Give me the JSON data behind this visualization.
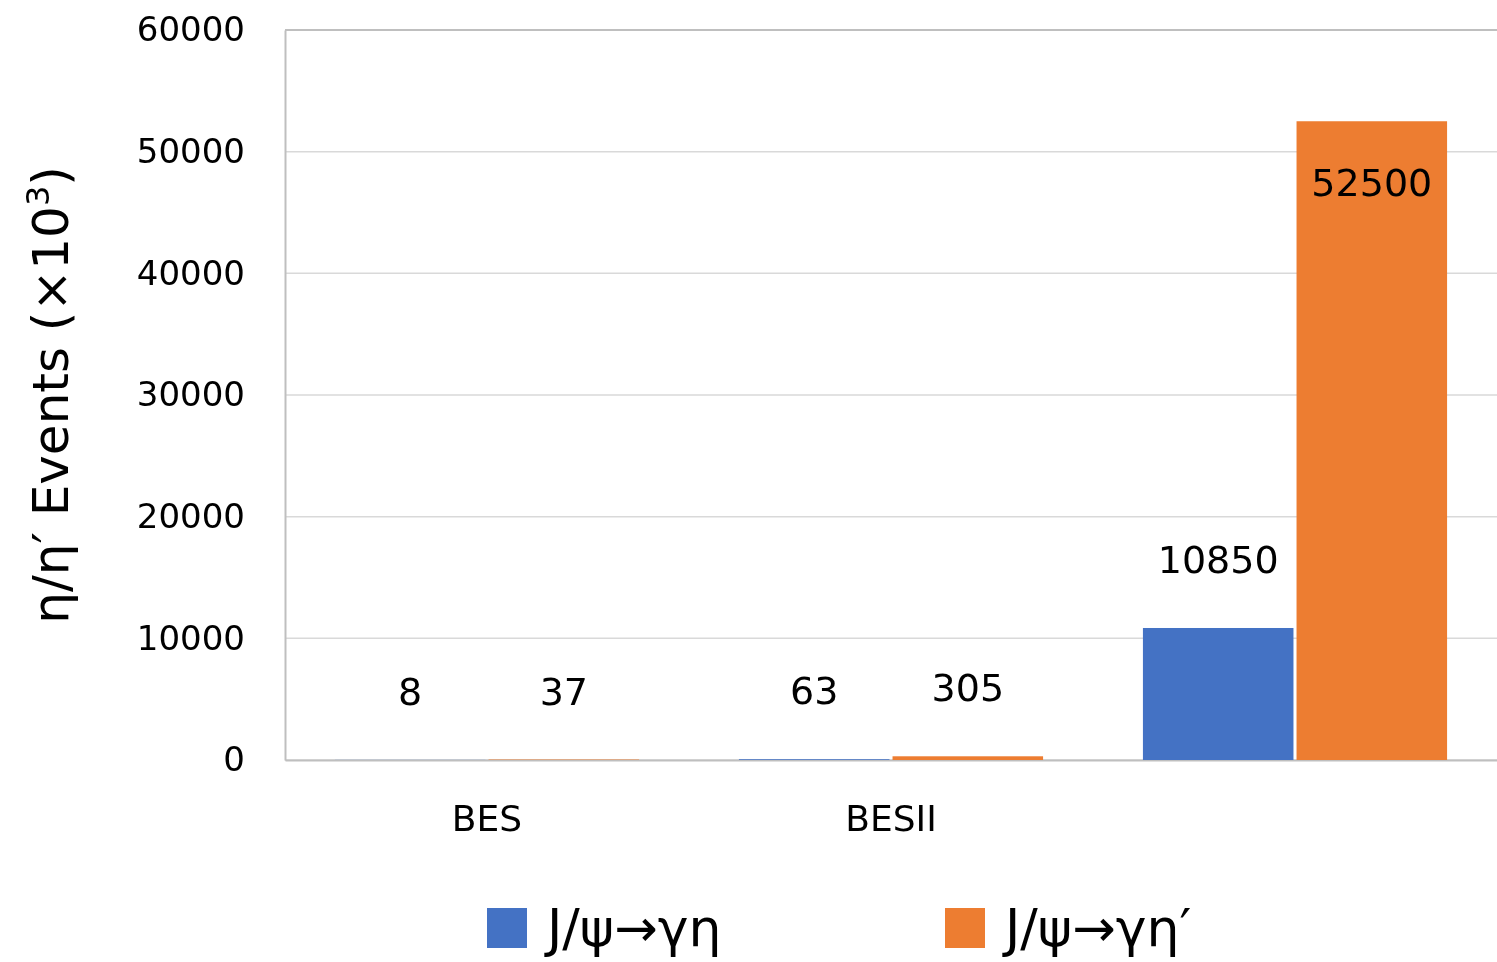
{
  "chart_data": {
    "type": "bar",
    "ylabel": "η/η′ Events (×10$^{3}$)",
    "categories": [
      "BES",
      "BESII",
      null
    ],
    "series": [
      {
        "name": "J/ψ→γη",
        "color": "#4472c4",
        "values": [
          8,
          63,
          10850
        ]
      },
      {
        "name": "J/ψ→γη′",
        "color": "#ed7d31",
        "values": [
          37,
          305,
          52500
        ]
      }
    ],
    "ylim": [
      0,
      60000
    ],
    "yticks": [
      0,
      10000,
      20000,
      30000,
      40000,
      50000,
      60000
    ],
    "grid": "y",
    "legend": "bottom",
    "data_labels": true
  }
}
